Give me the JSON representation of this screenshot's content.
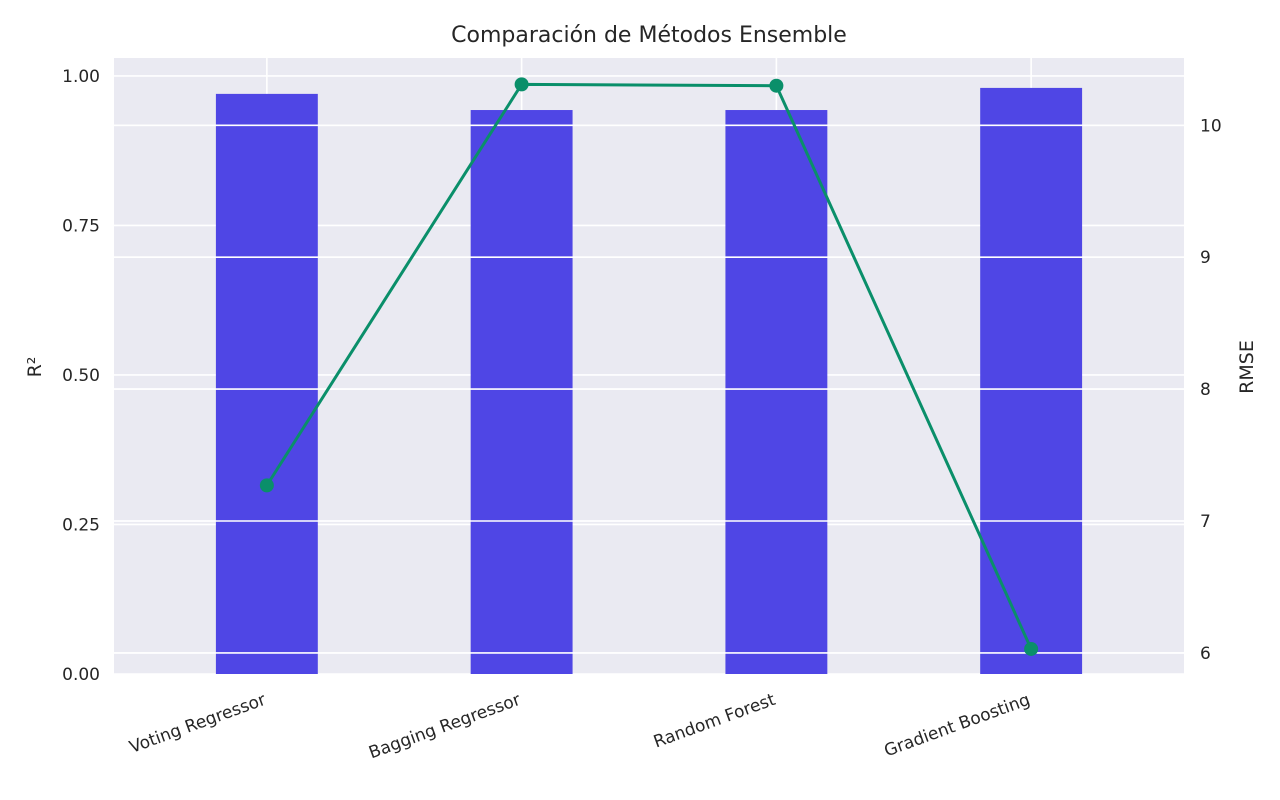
{
  "chart_data": {
    "type": "bar",
    "title": "Comparación de Métodos Ensemble",
    "categories": [
      "Voting Regressor",
      "Bagging Regressor",
      "Random Forest",
      "Gradient Boosting"
    ],
    "series": [
      {
        "name": "R²",
        "type": "bar",
        "axis": "left",
        "color": "#4f46e5",
        "values": [
          0.97,
          0.943,
          0.943,
          0.98
        ]
      },
      {
        "name": "RMSE",
        "type": "line",
        "axis": "right",
        "color": "#0a8f6a",
        "values": [
          7.27,
          10.31,
          10.3,
          6.03
        ]
      }
    ],
    "y_left": {
      "label": "R²",
      "range": [
        0,
        1.03
      ],
      "ticks": [
        "0.00",
        "0.25",
        "0.50",
        "0.75",
        "1.00"
      ]
    },
    "y_right": {
      "label": "RMSE",
      "range": [
        5.84,
        10.51
      ],
      "ticks": [
        "6",
        "7",
        "8",
        "9",
        "10"
      ]
    },
    "grid": true,
    "background": "#eaeaf2"
  }
}
